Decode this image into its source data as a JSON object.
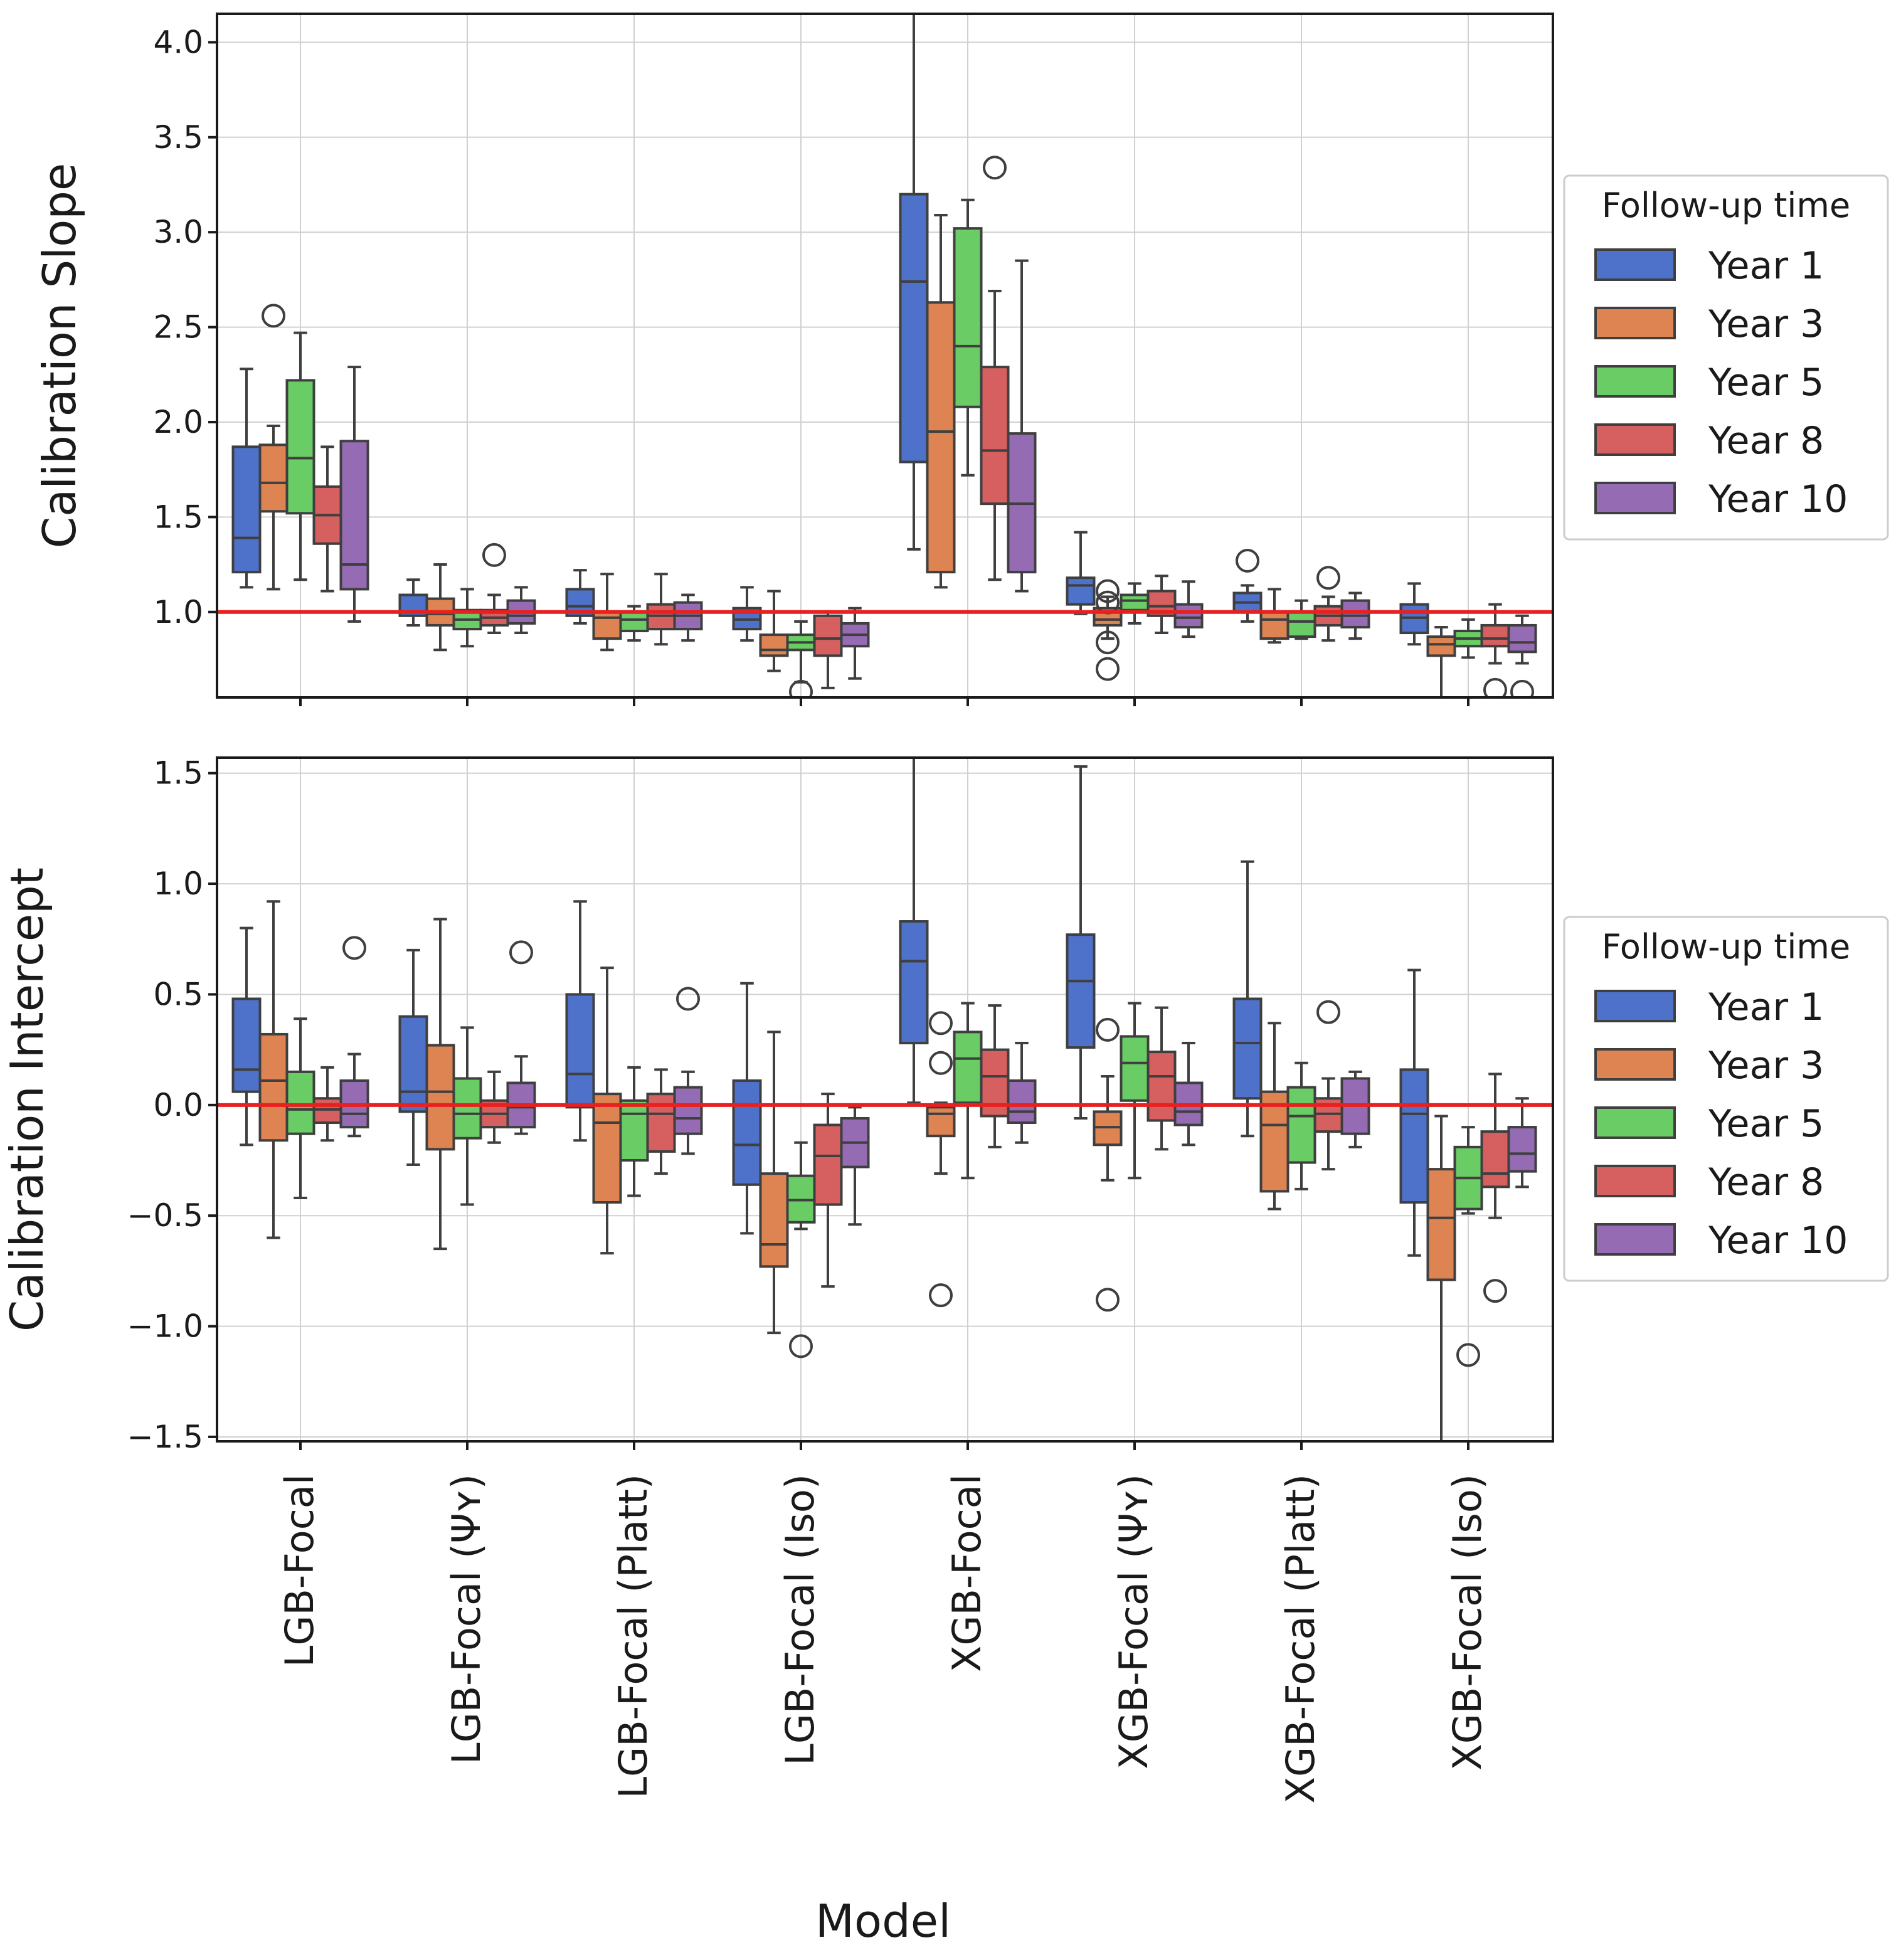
{
  "figure": {
    "xlabel": "Model",
    "reference_line_color": "#e8201f"
  },
  "chart_data": [
    {
      "type": "box",
      "panel": "top",
      "ylabel": "Calibration Slope",
      "ylim": [
        0.55,
        4.15
      ],
      "yticks": [
        "1.0",
        "1.5",
        "2.0",
        "2.5",
        "3.0",
        "3.5",
        "4.0"
      ],
      "reference_line": 1.0,
      "categories": [
        "LGB-Focal",
        "LGB-Focal (Ψʏ)",
        "LGB-Focal (Platt)",
        "LGB-Focal (Iso)",
        "XGB-Focal",
        "XGB-Focal (Ψʏ)",
        "XGB-Focal (Platt)",
        "XGB-Focal (Iso)"
      ],
      "legend": {
        "title": "Follow-up time",
        "placement": "right"
      },
      "series": [
        {
          "name": "Year 1",
          "color": "#4e72c9",
          "boxes": [
            {
              "q1": 1.21,
              "median": 1.39,
              "q3": 1.87,
              "lo": 1.13,
              "hi": 2.28,
              "outliers": []
            },
            {
              "q1": 0.98,
              "median": 1.0,
              "q3": 1.09,
              "lo": 0.93,
              "hi": 1.17,
              "outliers": []
            },
            {
              "q1": 0.98,
              "median": 1.03,
              "q3": 1.12,
              "lo": 0.94,
              "hi": 1.22,
              "outliers": []
            },
            {
              "q1": 0.91,
              "median": 0.96,
              "q3": 1.02,
              "lo": 0.85,
              "hi": 1.13,
              "outliers": []
            },
            {
              "q1": 1.79,
              "median": 2.74,
              "q3": 3.2,
              "lo": 1.33,
              "hi": 4.15,
              "outliers": []
            },
            {
              "q1": 1.04,
              "median": 1.14,
              "q3": 1.18,
              "lo": 0.99,
              "hi": 1.42,
              "outliers": []
            },
            {
              "q1": 1.0,
              "median": 1.05,
              "q3": 1.1,
              "lo": 0.95,
              "hi": 1.14,
              "outliers": [
                1.27
              ]
            },
            {
              "q1": 0.89,
              "median": 0.97,
              "q3": 1.04,
              "lo": 0.83,
              "hi": 1.15,
              "outliers": []
            }
          ]
        },
        {
          "name": "Year 3",
          "color": "#dd8452",
          "boxes": [
            {
              "q1": 1.53,
              "median": 1.68,
              "q3": 1.88,
              "lo": 1.12,
              "hi": 1.98,
              "outliers": [
                2.56
              ]
            },
            {
              "q1": 0.93,
              "median": 0.99,
              "q3": 1.07,
              "lo": 0.8,
              "hi": 1.25,
              "outliers": []
            },
            {
              "q1": 0.86,
              "median": 0.97,
              "q3": 1.0,
              "lo": 0.8,
              "hi": 1.2,
              "outliers": []
            },
            {
              "q1": 0.77,
              "median": 0.8,
              "q3": 0.88,
              "lo": 0.69,
              "hi": 1.11,
              "outliers": []
            },
            {
              "q1": 1.21,
              "median": 1.95,
              "q3": 2.63,
              "lo": 1.13,
              "hi": 3.09,
              "outliers": []
            },
            {
              "q1": 0.93,
              "median": 0.96,
              "q3": 1.02,
              "lo": 0.86,
              "hi": 1.08,
              "outliers": [
                1.11,
                1.05,
                0.84,
                0.7
              ]
            },
            {
              "q1": 0.86,
              "median": 0.96,
              "q3": 1.0,
              "lo": 0.84,
              "hi": 1.12,
              "outliers": []
            },
            {
              "q1": 0.77,
              "median": 0.83,
              "q3": 0.87,
              "lo": 0.55,
              "hi": 0.92,
              "outliers": []
            }
          ]
        },
        {
          "name": "Year 5",
          "color": "#6acc64",
          "boxes": [
            {
              "q1": 1.52,
              "median": 1.81,
              "q3": 2.22,
              "lo": 1.17,
              "hi": 2.47,
              "outliers": []
            },
            {
              "q1": 0.91,
              "median": 0.96,
              "q3": 1.01,
              "lo": 0.82,
              "hi": 1.12,
              "outliers": []
            },
            {
              "q1": 0.9,
              "median": 0.96,
              "q3": 1.0,
              "lo": 0.85,
              "hi": 1.03,
              "outliers": []
            },
            {
              "q1": 0.8,
              "median": 0.84,
              "q3": 0.88,
              "lo": 0.63,
              "hi": 0.95,
              "outliers": [
                0.58
              ]
            },
            {
              "q1": 2.08,
              "median": 2.4,
              "q3": 3.02,
              "lo": 1.72,
              "hi": 3.17,
              "outliers": []
            },
            {
              "q1": 1.01,
              "median": 1.06,
              "q3": 1.09,
              "lo": 0.94,
              "hi": 1.15,
              "outliers": []
            },
            {
              "q1": 0.87,
              "median": 0.95,
              "q3": 1.0,
              "lo": 0.86,
              "hi": 1.06,
              "outliers": []
            },
            {
              "q1": 0.82,
              "median": 0.86,
              "q3": 0.9,
              "lo": 0.76,
              "hi": 0.96,
              "outliers": []
            }
          ]
        },
        {
          "name": "Year 8",
          "color": "#d65f5f",
          "boxes": [
            {
              "q1": 1.36,
              "median": 1.51,
              "q3": 1.66,
              "lo": 1.11,
              "hi": 1.87,
              "outliers": []
            },
            {
              "q1": 0.93,
              "median": 0.97,
              "q3": 1.01,
              "lo": 0.89,
              "hi": 1.09,
              "outliers": [
                1.3
              ]
            },
            {
              "q1": 0.91,
              "median": 0.98,
              "q3": 1.04,
              "lo": 0.83,
              "hi": 1.2,
              "outliers": []
            },
            {
              "q1": 0.77,
              "median": 0.86,
              "q3": 0.98,
              "lo": 0.6,
              "hi": 1.0,
              "outliers": []
            },
            {
              "q1": 1.57,
              "median": 1.85,
              "q3": 2.29,
              "lo": 1.17,
              "hi": 2.69,
              "outliers": [
                3.34
              ]
            },
            {
              "q1": 0.98,
              "median": 1.03,
              "q3": 1.11,
              "lo": 0.89,
              "hi": 1.19,
              "outliers": []
            },
            {
              "q1": 0.93,
              "median": 0.98,
              "q3": 1.03,
              "lo": 0.85,
              "hi": 1.08,
              "outliers": [
                1.18
              ]
            },
            {
              "q1": 0.82,
              "median": 0.86,
              "q3": 0.93,
              "lo": 0.73,
              "hi": 1.04,
              "outliers": [
                0.59
              ]
            }
          ]
        },
        {
          "name": "Year 10",
          "color": "#956cb4",
          "boxes": [
            {
              "q1": 1.12,
              "median": 1.25,
              "q3": 1.9,
              "lo": 0.95,
              "hi": 2.29,
              "outliers": []
            },
            {
              "q1": 0.94,
              "median": 0.98,
              "q3": 1.06,
              "lo": 0.89,
              "hi": 1.13,
              "outliers": []
            },
            {
              "q1": 0.91,
              "median": 0.98,
              "q3": 1.05,
              "lo": 0.85,
              "hi": 1.09,
              "outliers": []
            },
            {
              "q1": 0.82,
              "median": 0.88,
              "q3": 0.94,
              "lo": 0.65,
              "hi": 1.02,
              "outliers": []
            },
            {
              "q1": 1.21,
              "median": 1.57,
              "q3": 1.94,
              "lo": 1.11,
              "hi": 2.85,
              "outliers": []
            },
            {
              "q1": 0.92,
              "median": 0.97,
              "q3": 1.04,
              "lo": 0.87,
              "hi": 1.16,
              "outliers": []
            },
            {
              "q1": 0.92,
              "median": 0.98,
              "q3": 1.06,
              "lo": 0.86,
              "hi": 1.1,
              "outliers": []
            },
            {
              "q1": 0.79,
              "median": 0.84,
              "q3": 0.93,
              "lo": 0.73,
              "hi": 0.98,
              "outliers": [
                0.58
              ]
            }
          ]
        }
      ]
    },
    {
      "type": "box",
      "panel": "bottom",
      "ylabel": "Calibration Intercept",
      "ylim": [
        -1.52,
        1.57
      ],
      "yticks": [
        "1.5",
        "1.0",
        "0.5",
        "0.0",
        "−0.5",
        "−1.0",
        "−1.5"
      ],
      "reference_line": 0.0,
      "categories": [
        "LGB-Focal",
        "LGB-Focal (Ψʏ)",
        "LGB-Focal (Platt)",
        "LGB-Focal (Iso)",
        "XGB-Focal",
        "XGB-Focal (Ψʏ)",
        "XGB-Focal (Platt)",
        "XGB-Focal (Iso)"
      ],
      "legend": {
        "title": "Follow-up time",
        "placement": "right"
      },
      "series": [
        {
          "name": "Year 1",
          "color": "#4e72c9",
          "boxes": [
            {
              "q1": 0.06,
              "median": 0.16,
              "q3": 0.48,
              "lo": -0.18,
              "hi": 0.8,
              "outliers": []
            },
            {
              "q1": -0.03,
              "median": 0.06,
              "q3": 0.4,
              "lo": -0.27,
              "hi": 0.7,
              "outliers": []
            },
            {
              "q1": -0.01,
              "median": 0.14,
              "q3": 0.5,
              "lo": -0.16,
              "hi": 0.92,
              "outliers": []
            },
            {
              "q1": -0.36,
              "median": -0.18,
              "q3": 0.11,
              "lo": -0.58,
              "hi": 0.55,
              "outliers": []
            },
            {
              "q1": 0.28,
              "median": 0.65,
              "q3": 0.83,
              "lo": 0.01,
              "hi": 1.57,
              "outliers": []
            },
            {
              "q1": 0.26,
              "median": 0.56,
              "q3": 0.77,
              "lo": -0.06,
              "hi": 1.53,
              "outliers": []
            },
            {
              "q1": 0.03,
              "median": 0.28,
              "q3": 0.48,
              "lo": -0.14,
              "hi": 1.1,
              "outliers": []
            },
            {
              "q1": -0.44,
              "median": -0.04,
              "q3": 0.16,
              "lo": -0.68,
              "hi": 0.61,
              "outliers": []
            }
          ]
        },
        {
          "name": "Year 3",
          "color": "#dd8452",
          "boxes": [
            {
              "q1": -0.16,
              "median": 0.11,
              "q3": 0.32,
              "lo": -0.6,
              "hi": 0.92,
              "outliers": []
            },
            {
              "q1": -0.2,
              "median": 0.06,
              "q3": 0.27,
              "lo": -0.65,
              "hi": 0.84,
              "outliers": []
            },
            {
              "q1": -0.44,
              "median": -0.08,
              "q3": 0.05,
              "lo": -0.67,
              "hi": 0.62,
              "outliers": []
            },
            {
              "q1": -0.73,
              "median": -0.63,
              "q3": -0.31,
              "lo": -1.03,
              "hi": 0.33,
              "outliers": []
            },
            {
              "q1": -0.14,
              "median": -0.04,
              "q3": -0.01,
              "lo": -0.31,
              "hi": 0.01,
              "outliers": [
                0.37,
                0.19,
                -0.86
              ]
            },
            {
              "q1": -0.18,
              "median": -0.1,
              "q3": -0.03,
              "lo": -0.34,
              "hi": 0.13,
              "outliers": [
                0.34,
                -0.88
              ]
            },
            {
              "q1": -0.39,
              "median": -0.09,
              "q3": 0.06,
              "lo": -0.47,
              "hi": 0.37,
              "outliers": []
            },
            {
              "q1": -0.79,
              "median": -0.51,
              "q3": -0.29,
              "lo": -1.52,
              "hi": -0.05,
              "outliers": []
            }
          ]
        },
        {
          "name": "Year 5",
          "color": "#6acc64",
          "boxes": [
            {
              "q1": -0.13,
              "median": -0.02,
              "q3": 0.15,
              "lo": -0.42,
              "hi": 0.39,
              "outliers": []
            },
            {
              "q1": -0.15,
              "median": -0.04,
              "q3": 0.12,
              "lo": -0.45,
              "hi": 0.35,
              "outliers": []
            },
            {
              "q1": -0.25,
              "median": -0.04,
              "q3": 0.02,
              "lo": -0.41,
              "hi": 0.17,
              "outliers": []
            },
            {
              "q1": -0.53,
              "median": -0.43,
              "q3": -0.32,
              "lo": -0.56,
              "hi": -0.17,
              "outliers": [
                -1.09
              ]
            },
            {
              "q1": 0.01,
              "median": 0.21,
              "q3": 0.33,
              "lo": -0.33,
              "hi": 0.46,
              "outliers": []
            },
            {
              "q1": 0.02,
              "median": 0.19,
              "q3": 0.31,
              "lo": -0.33,
              "hi": 0.46,
              "outliers": []
            },
            {
              "q1": -0.26,
              "median": -0.05,
              "q3": 0.08,
              "lo": -0.38,
              "hi": 0.19,
              "outliers": []
            },
            {
              "q1": -0.47,
              "median": -0.33,
              "q3": -0.19,
              "lo": -0.49,
              "hi": -0.1,
              "outliers": [
                -1.13
              ]
            }
          ]
        },
        {
          "name": "Year 8",
          "color": "#d65f5f",
          "boxes": [
            {
              "q1": -0.08,
              "median": -0.02,
              "q3": 0.03,
              "lo": -0.16,
              "hi": 0.17,
              "outliers": []
            },
            {
              "q1": -0.1,
              "median": -0.04,
              "q3": 0.02,
              "lo": -0.17,
              "hi": 0.15,
              "outliers": []
            },
            {
              "q1": -0.21,
              "median": -0.04,
              "q3": 0.05,
              "lo": -0.31,
              "hi": 0.16,
              "outliers": []
            },
            {
              "q1": -0.45,
              "median": -0.23,
              "q3": -0.09,
              "lo": -0.82,
              "hi": 0.05,
              "outliers": []
            },
            {
              "q1": -0.05,
              "median": 0.13,
              "q3": 0.25,
              "lo": -0.19,
              "hi": 0.45,
              "outliers": []
            },
            {
              "q1": -0.07,
              "median": 0.13,
              "q3": 0.24,
              "lo": -0.2,
              "hi": 0.44,
              "outliers": []
            },
            {
              "q1": -0.12,
              "median": -0.04,
              "q3": 0.03,
              "lo": -0.29,
              "hi": 0.12,
              "outliers": [
                0.42
              ]
            },
            {
              "q1": -0.37,
              "median": -0.31,
              "q3": -0.12,
              "lo": -0.51,
              "hi": 0.14,
              "outliers": [
                -0.84
              ]
            }
          ]
        },
        {
          "name": "Year 10",
          "color": "#956cb4",
          "boxes": [
            {
              "q1": -0.1,
              "median": -0.04,
              "q3": 0.11,
              "lo": -0.14,
              "hi": 0.23,
              "outliers": [
                0.71
              ]
            },
            {
              "q1": -0.1,
              "median": -0.01,
              "q3": 0.1,
              "lo": -0.13,
              "hi": 0.22,
              "outliers": [
                0.69
              ]
            },
            {
              "q1": -0.13,
              "median": -0.06,
              "q3": 0.08,
              "lo": -0.22,
              "hi": 0.15,
              "outliers": [
                0.48
              ]
            },
            {
              "q1": -0.28,
              "median": -0.17,
              "q3": -0.06,
              "lo": -0.54,
              "hi": -0.01,
              "outliers": []
            },
            {
              "q1": -0.08,
              "median": -0.03,
              "q3": 0.11,
              "lo": -0.17,
              "hi": 0.28,
              "outliers": []
            },
            {
              "q1": -0.09,
              "median": -0.03,
              "q3": 0.1,
              "lo": -0.18,
              "hi": 0.28,
              "outliers": []
            },
            {
              "q1": -0.13,
              "median": 0.0,
              "q3": 0.12,
              "lo": -0.19,
              "hi": 0.15,
              "outliers": []
            },
            {
              "q1": -0.3,
              "median": -0.22,
              "q3": -0.1,
              "lo": -0.37,
              "hi": 0.03,
              "outliers": []
            }
          ]
        }
      ]
    }
  ]
}
